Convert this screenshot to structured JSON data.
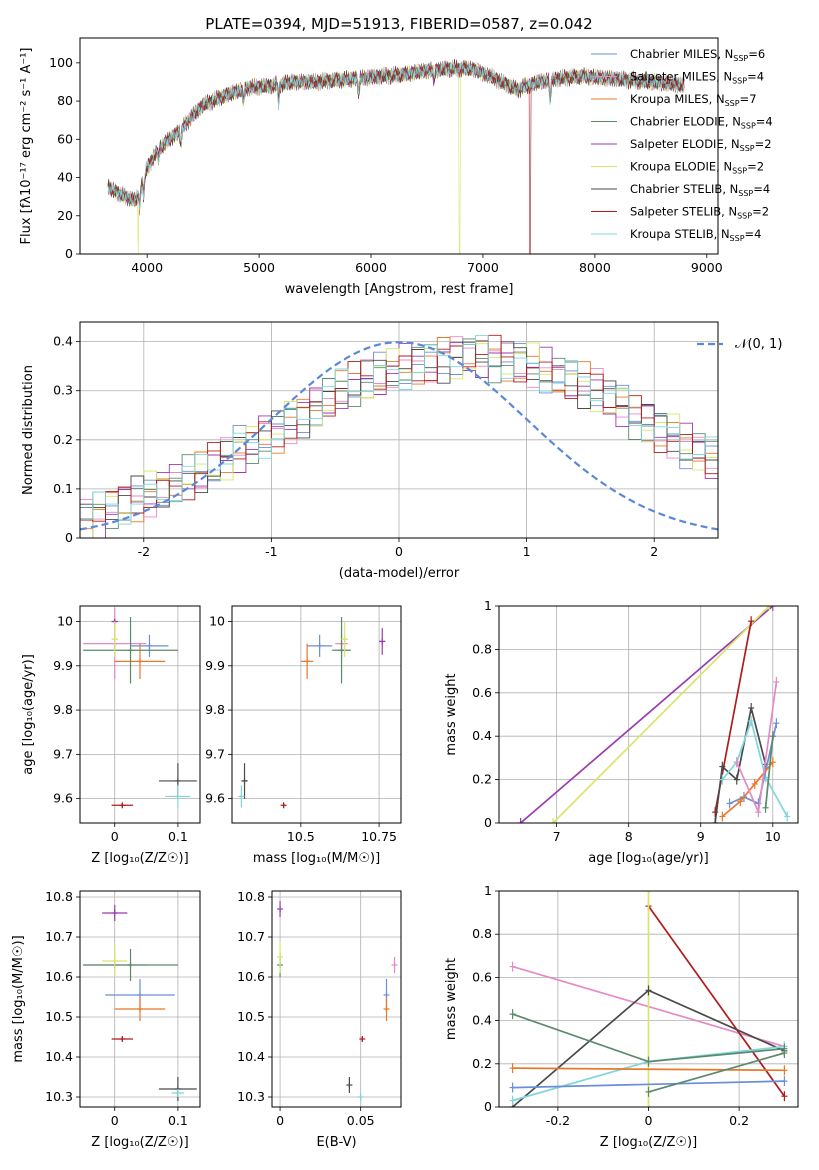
{
  "colors": {
    "chabrier_miles": "#6a8fd6",
    "salpeter_miles": "#e58ac4",
    "kroupa_miles": "#e8782a",
    "chabrier_elodie": "#5b8a6b",
    "salpeter_elodie": "#9a3bb0",
    "kroupa_elodie": "#d9e46a",
    "chabrier_stelib": "#4a4a4a",
    "salpeter_stelib": "#b01c1c",
    "kroupa_stelib": "#7fd6dc",
    "gauss": "#5b88d9",
    "grid": "#b0b0b0"
  },
  "chart_data": [
    {
      "id": "spectrum",
      "type": "line",
      "title": "PLATE=0394, MJD=51913, FIBERID=0587, z=0.042",
      "xlabel": "wavelength [Angstrom, rest frame]",
      "ylabel": "Flux [fλ10⁻¹⁷ erg cm⁻² s⁻¹ A⁻¹]",
      "xlim": [
        3400,
        9100
      ],
      "ylim": [
        0,
        113
      ],
      "xticks": [
        4000,
        5000,
        6000,
        7000,
        8000,
        9000
      ],
      "yticks": [
        0,
        20,
        40,
        60,
        80,
        100
      ],
      "continuum_x": [
        3650,
        3800,
        3900,
        4000,
        4100,
        4200,
        4300,
        4400,
        4500,
        4700,
        4900,
        5100,
        5300,
        5500,
        5700,
        5900,
        6100,
        6300,
        6500,
        6700,
        6900,
        7100,
        7300,
        7500,
        7700,
        7900,
        8100,
        8300,
        8500,
        8700,
        8800
      ],
      "continuum_y": [
        35,
        30,
        28,
        45,
        55,
        60,
        65,
        72,
        78,
        83,
        87,
        88,
        90,
        90,
        91,
        92,
        93,
        94,
        96,
        97,
        97,
        92,
        86,
        90,
        92,
        93,
        92,
        91,
        90,
        89,
        88
      ],
      "dropouts": [
        {
          "series": "Kroupa ELODIE",
          "x": 3920
        },
        {
          "series": "Kroupa ELODIE",
          "x": 6790
        },
        {
          "series": "Salpeter STELIB",
          "x": 7420
        }
      ],
      "legend": [
        {
          "name": "Chabrier MILES",
          "n": "6",
          "color_key": "chabrier_miles"
        },
        {
          "name": "Salpeter MILES",
          "n": "4",
          "color_key": "salpeter_miles"
        },
        {
          "name": "Kroupa MILES",
          "n": "7",
          "color_key": "kroupa_miles"
        },
        {
          "name": "Chabrier ELODIE",
          "n": "4",
          "color_key": "chabrier_elodie"
        },
        {
          "name": "Salpeter ELODIE",
          "n": "2",
          "color_key": "salpeter_elodie"
        },
        {
          "name": "Kroupa ELODIE",
          "n": "2",
          "color_key": "kroupa_elodie"
        },
        {
          "name": "Chabrier STELIB",
          "n": "4",
          "color_key": "chabrier_stelib"
        },
        {
          "name": "Salpeter STELIB",
          "n": "2",
          "color_key": "salpeter_stelib"
        },
        {
          "name": "Kroupa STELIB",
          "n": "4",
          "color_key": "kroupa_stelib"
        }
      ],
      "nssp_label": "N",
      "nssp_sub": "SSP"
    },
    {
      "id": "residuals",
      "type": "histogram",
      "xlabel": "(data-model)/error",
      "ylabel": "Normed distribution",
      "xlim": [
        -2.5,
        2.5
      ],
      "ylim": [
        0,
        0.44
      ],
      "xticks": [
        -2,
        -1,
        0,
        1,
        2
      ],
      "yticks": [
        0.0,
        0.1,
        0.2,
        0.3,
        0.4
      ],
      "bin_width": 0.1,
      "envelope": [
        0.04,
        0.05,
        0.06,
        0.07,
        0.08,
        0.09,
        0.1,
        0.11,
        0.12,
        0.13,
        0.15,
        0.16,
        0.18,
        0.19,
        0.21,
        0.22,
        0.24,
        0.25,
        0.27,
        0.28,
        0.3,
        0.31,
        0.32,
        0.33,
        0.34,
        0.35,
        0.355,
        0.36,
        0.365,
        0.37,
        0.37,
        0.37,
        0.365,
        0.36,
        0.355,
        0.35,
        0.34,
        0.33,
        0.32,
        0.31,
        0.3,
        0.28,
        0.27,
        0.25,
        0.24,
        0.22,
        0.21,
        0.19,
        0.18,
        0.16
      ],
      "gauss_label": "𝒩(0, 1)"
    },
    {
      "id": "age_vs_Z",
      "type": "scatter",
      "xlabel": "Z [log₁₀(Z/Z☉)]",
      "ylabel": "age  [log₁₀(age/yr)]",
      "xlim": [
        -0.055,
        0.135
      ],
      "ylim": [
        9.545,
        10.035
      ],
      "xticks": [
        0.0,
        0.1
      ],
      "yticks": [
        9.6,
        9.7,
        9.8,
        9.9,
        10.0
      ],
      "points": [
        {
          "c": "chabrier_miles",
          "x": 0.055,
          "y": 9.945,
          "xe": 0.03,
          "ye": 0.025
        },
        {
          "c": "salpeter_miles",
          "x": 0.0,
          "y": 9.95,
          "xe": 0.05,
          "ye": 0.08
        },
        {
          "c": "kroupa_miles",
          "x": 0.04,
          "y": 9.91,
          "xe": 0.04,
          "ye": 0.04
        },
        {
          "c": "chabrier_elodie",
          "x": 0.025,
          "y": 9.935,
          "xe": 0.075,
          "ye": 0.075
        },
        {
          "c": "salpeter_elodie",
          "x": 0.0,
          "y": 10.0,
          "xe": 0.005,
          "ye": 0.005
        },
        {
          "c": "kroupa_elodie",
          "x": 0.0,
          "y": 9.96,
          "xe": 0.005,
          "ye": 0.04
        },
        {
          "c": "chabrier_stelib",
          "x": 0.1,
          "y": 9.64,
          "xe": 0.03,
          "ye": 0.04
        },
        {
          "c": "salpeter_stelib",
          "x": 0.012,
          "y": 9.585,
          "xe": 0.017,
          "ye": 0.005
        },
        {
          "c": "kroupa_stelib",
          "x": 0.1,
          "y": 9.605,
          "xe": 0.02,
          "ye": 0.025
        }
      ]
    },
    {
      "id": "age_vs_mass",
      "type": "scatter",
      "xlabel": "mass [log₁₀(M/M☉)]",
      "ylabel": "",
      "xlim": [
        10.28,
        10.82
      ],
      "ylim": [
        9.545,
        10.035
      ],
      "xticks": [
        10.5,
        10.75
      ],
      "yticks": [
        9.6,
        9.7,
        9.8,
        9.9,
        10.0
      ],
      "points": [
        {
          "c": "chabrier_miles",
          "x": 10.56,
          "y": 9.945,
          "xe": 0.04,
          "ye": 0.025
        },
        {
          "c": "salpeter_miles",
          "x": 10.63,
          "y": 9.95,
          "xe": 0.02,
          "ye": 0.04
        },
        {
          "c": "kroupa_miles",
          "x": 10.52,
          "y": 9.91,
          "xe": 0.02,
          "ye": 0.04
        },
        {
          "c": "chabrier_elodie",
          "x": 10.63,
          "y": 9.935,
          "xe": 0.03,
          "ye": 0.075
        },
        {
          "c": "salpeter_elodie",
          "x": 10.76,
          "y": 9.955,
          "xe": 0.01,
          "ye": 0.03
        },
        {
          "c": "kroupa_elodie",
          "x": 10.64,
          "y": 9.96,
          "xe": 0.01,
          "ye": 0.04
        },
        {
          "c": "chabrier_stelib",
          "x": 10.32,
          "y": 9.64,
          "xe": 0.01,
          "ye": 0.04
        },
        {
          "c": "salpeter_stelib",
          "x": 10.445,
          "y": 9.585,
          "xe": 0.003,
          "ye": 0.005
        },
        {
          "c": "kroupa_stelib",
          "x": 10.31,
          "y": 9.605,
          "xe": 0.005,
          "ye": 0.025
        }
      ]
    },
    {
      "id": "weight_vs_age",
      "type": "line",
      "xlabel": "age  [log₁₀(age/yr)]",
      "ylabel": "mass weight",
      "xlim": [
        6.2,
        10.35
      ],
      "ylim": [
        0,
        1
      ],
      "xticks": [
        7,
        8,
        9,
        10
      ],
      "yticks": [
        0.0,
        0.2,
        0.4,
        0.6,
        0.8,
        1.0
      ],
      "series": [
        {
          "c": "salpeter_elodie",
          "x": [
            6.5,
            10.0
          ],
          "y": [
            0.0,
            1.0
          ]
        },
        {
          "c": "kroupa_elodie",
          "x": [
            6.95,
            9.95
          ],
          "y": [
            0.0,
            1.0
          ]
        },
        {
          "c": "salpeter_stelib",
          "x": [
            9.2,
            9.7
          ],
          "y": [
            0.05,
            0.93
          ]
        },
        {
          "c": "chabrier_stelib",
          "x": [
            9.2,
            9.3,
            9.5,
            9.7,
            9.9
          ],
          "y": [
            0.0,
            0.26,
            0.2,
            0.53,
            0.27
          ]
        },
        {
          "c": "kroupa_stelib",
          "x": [
            9.3,
            9.5,
            9.7,
            9.9,
            10.2
          ],
          "y": [
            0.2,
            0.28,
            0.47,
            0.21,
            0.03
          ]
        },
        {
          "c": "chabrier_miles",
          "x": [
            9.4,
            9.6,
            9.8,
            10.05
          ],
          "y": [
            0.09,
            0.12,
            0.09,
            0.46
          ]
        },
        {
          "c": "kroupa_miles",
          "x": [
            9.3,
            9.55,
            9.75,
            10.0
          ],
          "y": [
            0.03,
            0.1,
            0.18,
            0.28
          ]
        },
        {
          "c": "salpeter_miles",
          "x": [
            9.5,
            9.8,
            10.05
          ],
          "y": [
            0.28,
            0.05,
            0.65
          ]
        },
        {
          "c": "chabrier_elodie",
          "x": [
            9.9,
            10.0
          ],
          "y": [
            0.07,
            0.4
          ]
        }
      ]
    },
    {
      "id": "mass_vs_Z",
      "type": "scatter",
      "xlabel": "Z [log₁₀(Z/Z☉)]",
      "ylabel": "mass [log₁₀(M/M☉)]",
      "xlim": [
        -0.055,
        0.135
      ],
      "ylim": [
        10.275,
        10.815
      ],
      "xticks": [
        0.0,
        0.1
      ],
      "yticks": [
        10.3,
        10.4,
        10.5,
        10.6,
        10.7,
        10.8
      ],
      "points": [
        {
          "c": "chabrier_miles",
          "x": 0.04,
          "y": 10.555,
          "xe": 0.055,
          "ye": 0.04
        },
        {
          "c": "salpeter_miles",
          "x": 0.0,
          "y": 10.63,
          "xe": 0.05,
          "ye": 0.01
        },
        {
          "c": "kroupa_miles",
          "x": 0.04,
          "y": 10.52,
          "xe": 0.04,
          "ye": 0.03
        },
        {
          "c": "chabrier_elodie",
          "x": 0.025,
          "y": 10.63,
          "xe": 0.075,
          "ye": 0.04
        },
        {
          "c": "salpeter_elodie",
          "x": 0.0,
          "y": 10.76,
          "xe": 0.02,
          "ye": 0.02
        },
        {
          "c": "kroupa_elodie",
          "x": 0.0,
          "y": 10.64,
          "xe": 0.02,
          "ye": 0.04
        },
        {
          "c": "chabrier_stelib",
          "x": 0.1,
          "y": 10.32,
          "xe": 0.03,
          "ye": 0.03
        },
        {
          "c": "salpeter_stelib",
          "x": 0.012,
          "y": 10.445,
          "xe": 0.017,
          "ye": 0.005
        },
        {
          "c": "kroupa_stelib",
          "x": 0.1,
          "y": 10.31,
          "xe": 0.01,
          "ye": 0.01
        }
      ]
    },
    {
      "id": "mass_vs_ebv",
      "type": "scatter",
      "xlabel": "E(B-V)",
      "ylabel": "",
      "xlim": [
        -0.005,
        0.075
      ],
      "ylim": [
        10.275,
        10.815
      ],
      "xticks": [
        0.0,
        0.05
      ],
      "yticks": [
        10.3,
        10.4,
        10.5,
        10.6,
        10.7,
        10.8
      ],
      "points": [
        {
          "c": "chabrier_miles",
          "x": 0.066,
          "y": 10.555,
          "xe": 0.0,
          "ye": 0.04
        },
        {
          "c": "salpeter_miles",
          "x": 0.071,
          "y": 10.63,
          "xe": 0.0,
          "ye": 0.02
        },
        {
          "c": "kroupa_miles",
          "x": 0.066,
          "y": 10.52,
          "xe": 0.0,
          "ye": 0.03
        },
        {
          "c": "chabrier_elodie",
          "x": 0.0,
          "y": 10.63,
          "xe": 0.0,
          "ye": 0.03
        },
        {
          "c": "salpeter_elodie",
          "x": 0.0,
          "y": 10.77,
          "xe": 0.0,
          "ye": 0.02
        },
        {
          "c": "kroupa_elodie",
          "x": 0.0,
          "y": 10.65,
          "xe": 0.0,
          "ye": 0.04
        },
        {
          "c": "chabrier_stelib",
          "x": 0.043,
          "y": 10.33,
          "xe": 0.0,
          "ye": 0.02
        },
        {
          "c": "salpeter_stelib",
          "x": 0.051,
          "y": 10.445,
          "xe": 0.0,
          "ye": 0.005
        },
        {
          "c": "kroupa_stelib",
          "x": 0.05,
          "y": 10.3,
          "xe": 0.0,
          "ye": 0.01
        }
      ]
    },
    {
      "id": "weight_vs_Z",
      "type": "line",
      "xlabel": "Z [log₁₀(Z/Z☉)]",
      "ylabel": "mass weight",
      "xlim": [
        -0.33,
        0.33
      ],
      "ylim": [
        0,
        1
      ],
      "xticks": [
        -0.2,
        0.0,
        0.2
      ],
      "yticks": [
        0.0,
        0.2,
        0.4,
        0.6,
        0.8,
        1.0
      ],
      "series": [
        {
          "c": "salpeter_miles",
          "x": [
            -0.3,
            0.3
          ],
          "y": [
            0.65,
            0.28
          ]
        },
        {
          "c": "salpeter_stelib",
          "x": [
            0.0,
            0.3
          ],
          "y": [
            0.93,
            0.05
          ]
        },
        {
          "c": "kroupa_elodie",
          "x": [
            0.0,
            0.0
          ],
          "y": [
            0.0,
            1.0
          ]
        },
        {
          "c": "chabrier_stelib",
          "x": [
            -0.3,
            0.0,
            0.3
          ],
          "y": [
            0.0,
            0.54,
            0.26
          ]
        },
        {
          "c": "kroupa_stelib",
          "x": [
            -0.3,
            0.0,
            0.3
          ],
          "y": [
            0.03,
            0.21,
            0.28
          ]
        },
        {
          "c": "chabrier_elodie",
          "x": [
            -0.3,
            0.0,
            0.3
          ],
          "y": [
            0.43,
            0.21,
            0.27
          ]
        },
        {
          "c": "chabrier_miles",
          "x": [
            -0.3,
            0.3
          ],
          "y": [
            0.09,
            0.12
          ]
        },
        {
          "c": "kroupa_miles",
          "x": [
            -0.3,
            0.3
          ],
          "y": [
            0.18,
            0.17
          ]
        },
        {
          "c": "chabrier_elodie",
          "x": [
            0.0,
            0.3
          ],
          "y": [
            0.07,
            0.25
          ]
        }
      ]
    }
  ]
}
